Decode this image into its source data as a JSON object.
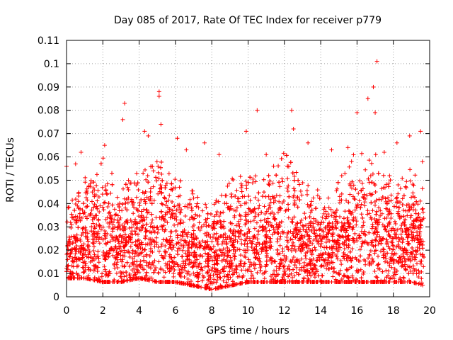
{
  "chart_data": {
    "type": "scatter",
    "title": "Day 085 of 2017, Rate Of TEC Index for receiver p779",
    "xlabel": "GPS time / hours",
    "ylabel": "ROTI / TECUs",
    "xlim": [
      0,
      20
    ],
    "ylim": [
      0,
      0.11
    ],
    "grid": true,
    "marker": "+",
    "color": "#ff0000",
    "x_ticks": [
      0,
      2,
      4,
      6,
      8,
      10,
      12,
      14,
      16,
      18,
      20
    ],
    "x_tick_labels": [
      "0",
      "2",
      "4",
      "6",
      "8",
      "10",
      "12",
      "14",
      "16",
      "18",
      "20"
    ],
    "y_ticks": [
      0,
      0.01,
      0.02,
      0.03,
      0.04,
      0.05,
      0.06,
      0.07,
      0.08,
      0.09,
      0.1,
      0.11
    ],
    "y_tick_labels": [
      "0",
      "0.01",
      "0.02",
      "0.03",
      "0.04",
      "0.05",
      "0.06",
      "0.07",
      "0.08",
      "0.09",
      "0.1",
      "0.11"
    ],
    "notable_points": [
      {
        "x": 0.0,
        "y": 0.056
      },
      {
        "x": 0.5,
        "y": 0.057
      },
      {
        "x": 0.8,
        "y": 0.062
      },
      {
        "x": 2.1,
        "y": 0.065
      },
      {
        "x": 3.2,
        "y": 0.083
      },
      {
        "x": 3.1,
        "y": 0.076
      },
      {
        "x": 4.3,
        "y": 0.071
      },
      {
        "x": 4.5,
        "y": 0.069
      },
      {
        "x": 5.1,
        "y": 0.088
      },
      {
        "x": 5.1,
        "y": 0.086
      },
      {
        "x": 5.2,
        "y": 0.074
      },
      {
        "x": 6.1,
        "y": 0.068
      },
      {
        "x": 6.6,
        "y": 0.063
      },
      {
        "x": 7.6,
        "y": 0.066
      },
      {
        "x": 8.4,
        "y": 0.061
      },
      {
        "x": 9.9,
        "y": 0.071
      },
      {
        "x": 10.5,
        "y": 0.08
      },
      {
        "x": 11.0,
        "y": 0.061
      },
      {
        "x": 12.4,
        "y": 0.08
      },
      {
        "x": 12.5,
        "y": 0.072
      },
      {
        "x": 13.3,
        "y": 0.066
      },
      {
        "x": 14.6,
        "y": 0.063
      },
      {
        "x": 15.5,
        "y": 0.064
      },
      {
        "x": 16.0,
        "y": 0.079
      },
      {
        "x": 16.6,
        "y": 0.085
      },
      {
        "x": 16.9,
        "y": 0.09
      },
      {
        "x": 17.1,
        "y": 0.101
      },
      {
        "x": 17.0,
        "y": 0.079
      },
      {
        "x": 17.5,
        "y": 0.062
      },
      {
        "x": 18.2,
        "y": 0.066
      },
      {
        "x": 18.9,
        "y": 0.069
      },
      {
        "x": 19.5,
        "y": 0.071
      },
      {
        "x": 19.6,
        "y": 0.058
      }
    ],
    "envelope": {
      "description": "Dense scatter of ROTI samples; hourly upper envelope and typical lower bound",
      "hours": [
        0,
        1,
        2,
        3,
        4,
        5,
        6,
        7,
        8,
        9,
        10,
        11,
        12,
        13,
        14,
        15,
        16,
        17,
        18,
        19,
        19.7
      ],
      "upper": [
        0.04,
        0.052,
        0.06,
        0.048,
        0.055,
        0.06,
        0.052,
        0.045,
        0.04,
        0.05,
        0.055,
        0.05,
        0.065,
        0.05,
        0.045,
        0.05,
        0.065,
        0.062,
        0.05,
        0.055,
        0.045
      ],
      "lower": [
        0.01,
        0.01,
        0.008,
        0.008,
        0.01,
        0.008,
        0.008,
        0.006,
        0.004,
        0.006,
        0.008,
        0.008,
        0.008,
        0.008,
        0.008,
        0.008,
        0.008,
        0.008,
        0.008,
        0.008,
        0.006
      ],
      "typical": [
        0.018,
        0.022,
        0.022,
        0.02,
        0.022,
        0.022,
        0.02,
        0.016,
        0.014,
        0.018,
        0.02,
        0.02,
        0.022,
        0.02,
        0.02,
        0.02,
        0.022,
        0.022,
        0.02,
        0.022,
        0.02
      ]
    }
  }
}
